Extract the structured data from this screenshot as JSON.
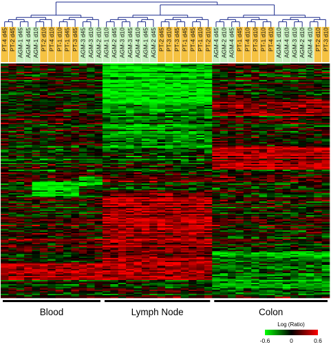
{
  "chart_data": {
    "type": "heatmap",
    "columns": [
      {
        "label": "PT-4 d45",
        "group": "PT"
      },
      {
        "label": "PT-2 d45",
        "group": "PT"
      },
      {
        "label": "AGM-1 d45",
        "group": "AGM"
      },
      {
        "label": "AGM-4 d45",
        "group": "AGM"
      },
      {
        "label": "AGM-1 d10",
        "group": "AGM"
      },
      {
        "label": "PT-2 d10",
        "group": "PT"
      },
      {
        "label": "PT-4 d10",
        "group": "PT"
      },
      {
        "label": "PT-1 d10",
        "group": "PT"
      },
      {
        "label": "PT-1 d45",
        "group": "PT"
      },
      {
        "label": "PT-3 d45",
        "group": "PT"
      },
      {
        "label": "AGM-3 d45",
        "group": "AGM"
      },
      {
        "label": "AGM-3 d10",
        "group": "AGM"
      },
      {
        "label": "AGM-2 d10",
        "group": "AGM"
      },
      {
        "label": "AGM-1 d10",
        "group": "AGM"
      },
      {
        "label": "AGM-2 d45",
        "group": "AGM"
      },
      {
        "label": "AGM-3 d10",
        "group": "AGM"
      },
      {
        "label": "AGM-3 d45",
        "group": "AGM"
      },
      {
        "label": "AGM-4 d10",
        "group": "AGM"
      },
      {
        "label": "AGM-1 d45",
        "group": "AGM"
      },
      {
        "label": "AGM-2 d45",
        "group": "AGM"
      },
      {
        "label": "PT-2 d45",
        "group": "PT"
      },
      {
        "label": "PT-3 d10",
        "group": "PT"
      },
      {
        "label": "PT-3 d45",
        "group": "PT"
      },
      {
        "label": "PT-1 d45",
        "group": "PT"
      },
      {
        "label": "PT-4 d45",
        "group": "PT"
      },
      {
        "label": "PT-1 d10",
        "group": "PT"
      },
      {
        "label": "PT-2 d10",
        "group": "PT"
      },
      {
        "label": "AGM-4 d45",
        "group": "AGM"
      },
      {
        "label": "AGM-2 d10",
        "group": "AGM"
      },
      {
        "label": "AGM-4 d45",
        "group": "AGM"
      },
      {
        "label": "PT-1 d45",
        "group": "PT"
      },
      {
        "label": "PT-4 d10",
        "group": "PT"
      },
      {
        "label": "PT-3 d10",
        "group": "PT"
      },
      {
        "label": "PT-1 d10",
        "group": "PT"
      },
      {
        "label": "PT-4 d10",
        "group": "PT"
      },
      {
        "label": "AGM-1 d10",
        "group": "AGM"
      },
      {
        "label": "AGM-4 d10",
        "group": "AGM"
      },
      {
        "label": "AGM-3 d10",
        "group": "AGM"
      },
      {
        "label": "AGM-2 d10",
        "group": "AGM"
      },
      {
        "label": "AGM-4 d10",
        "group": "AGM"
      },
      {
        "label": "PT-2 d10",
        "group": "PT"
      },
      {
        "label": "PT-3 d10",
        "group": "PT"
      }
    ],
    "tissues": [
      {
        "label": "Blood",
        "columns": [
          0,
          12
        ]
      },
      {
        "label": "Lymph Node",
        "columns": [
          13,
          26
        ]
      },
      {
        "label": "Colon",
        "columns": [
          27,
          41
        ]
      }
    ],
    "color_scale": {
      "title": "Log (Ratio)",
      "min": -0.6,
      "mid": 0,
      "max": 0.6,
      "tick_labels": [
        "-0.6",
        "0",
        "0.6"
      ],
      "low_color": "#00ff00",
      "mid_color": "#000000",
      "high_color": "#ff0000"
    },
    "blocks": [
      {
        "rows": "0-0.17",
        "columns": [
          13,
          26
        ],
        "mean": -0.5
      },
      {
        "rows": "0.17-0.36",
        "columns": [
          13,
          26
        ],
        "mean": -0.3
      },
      {
        "rows": "0.15-0.22",
        "columns": [
          27,
          41
        ],
        "mean": 0.3
      },
      {
        "rows": "0.35-0.45",
        "columns": [
          27,
          41
        ],
        "mean": 0.45
      },
      {
        "rows": "0.48-0.52",
        "columns": [
          10,
          12
        ],
        "mean": -0.5
      },
      {
        "rows": "0.5-0.56",
        "columns": [
          4,
          9
        ],
        "mean": -0.5
      },
      {
        "rows": "0.55-0.85",
        "columns": [
          13,
          26
        ],
        "mean": 0.35
      },
      {
        "rows": "0.72-0.82",
        "columns": [
          0,
          12
        ],
        "mean": 0.15
      },
      {
        "rows": "0.85-0.92",
        "columns": [
          0,
          26
        ],
        "mean": 0.35
      },
      {
        "rows": "0.8-0.98",
        "columns": [
          27,
          41
        ],
        "mean": -0.25
      }
    ],
    "dendrogram_color": "#1a2a8c",
    "group_colors": {
      "PT": "#f5c242",
      "AGM": "#c8f0c0"
    }
  }
}
